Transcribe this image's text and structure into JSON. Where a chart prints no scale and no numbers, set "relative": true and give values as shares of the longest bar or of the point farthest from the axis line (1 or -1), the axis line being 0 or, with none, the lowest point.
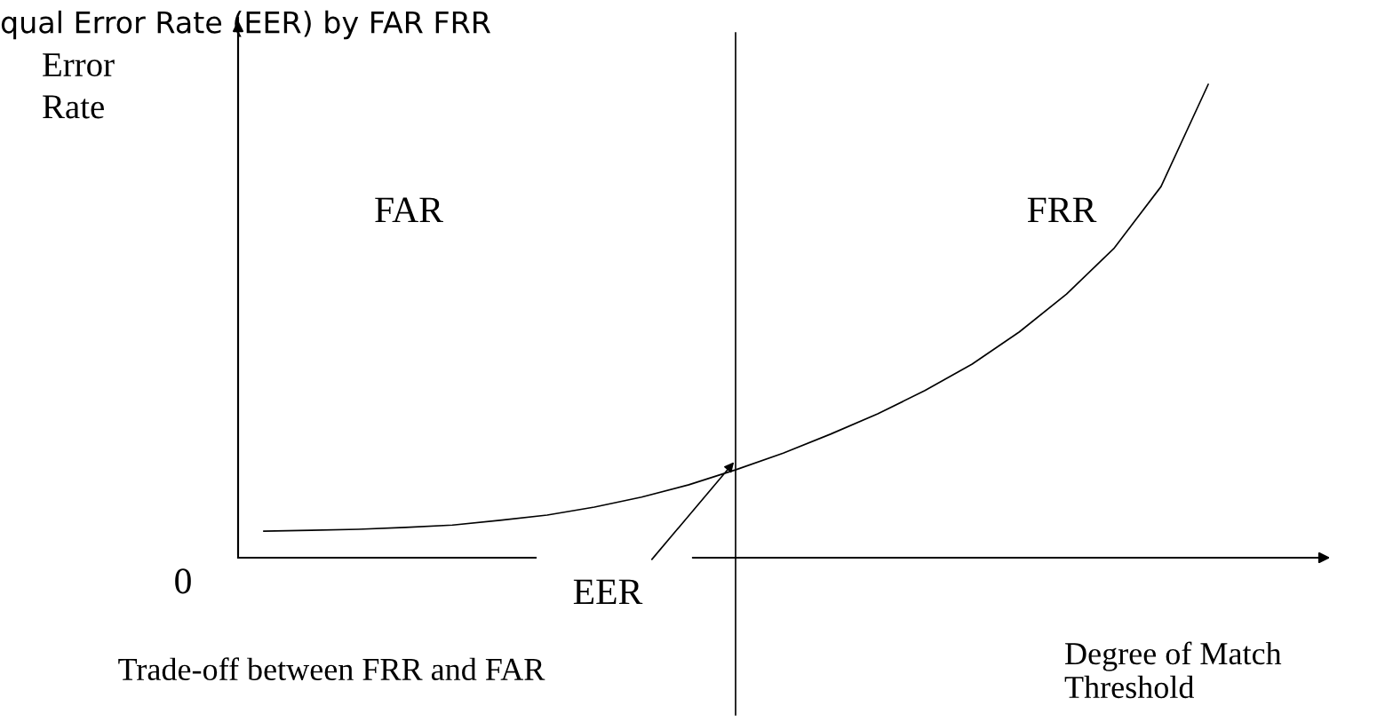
{
  "chart_data": {
    "type": "line",
    "title": "qual Error Rate (EER) by FAR FRR",
    "xlabel": "Degree of Match Threshold",
    "ylabel": "Error Rate",
    "relative": true,
    "legend": false,
    "marker": "none",
    "line_style": "solid",
    "categories": [
      null,
      null,
      null,
      null,
      null,
      null,
      null,
      null,
      null,
      null,
      null,
      null,
      null,
      null,
      null,
      null,
      null,
      null,
      null,
      null,
      null
    ],
    "series": [
      {
        "color": "#000000",
        "values": [
          0.056,
          0.058,
          0.06,
          0.064,
          0.069,
          0.079,
          0.09,
          0.107,
          0.128,
          0.154,
          0.186,
          0.221,
          0.261,
          0.304,
          0.353,
          0.409,
          0.477,
          0.557,
          0.653,
          0.784,
          1.0
        ]
      }
    ],
    "annotations": [
      "FAR",
      "FRR",
      "EER",
      "0",
      "Trade-off between FRR and FAR"
    ]
  }
}
